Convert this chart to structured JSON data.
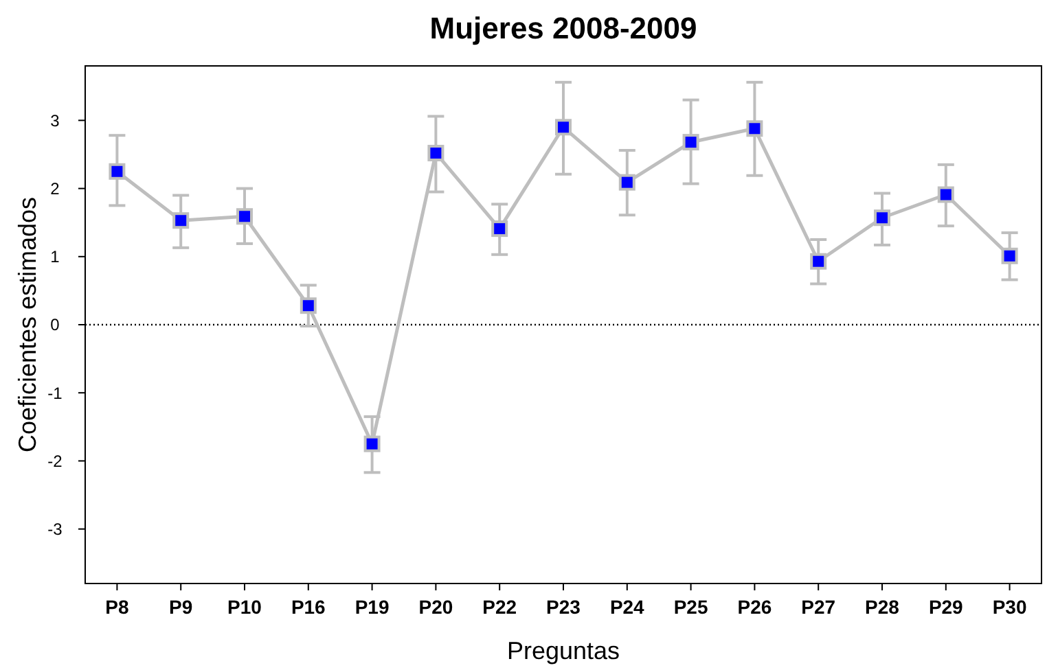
{
  "chart_data": {
    "type": "line",
    "title": "Mujeres 2008-2009",
    "xlabel": "Preguntas",
    "ylabel": "Coeficientes estimados",
    "categories": [
      "P8",
      "P9",
      "P10",
      "P16",
      "P19",
      "P20",
      "P22",
      "P23",
      "P24",
      "P25",
      "P26",
      "P27",
      "P28",
      "P29",
      "P30"
    ],
    "series": [
      {
        "color": "#0000ff",
        "values": [
          2.25,
          1.53,
          1.59,
          0.28,
          -1.75,
          2.52,
          1.41,
          2.9,
          2.09,
          2.68,
          2.88,
          0.93,
          1.57,
          1.91,
          1.01
        ],
        "errors": [
          [
            1.75,
            2.78
          ],
          [
            1.13,
            1.9
          ],
          [
            1.19,
            2.0
          ],
          [
            -0.02,
            0.58
          ],
          [
            -2.17,
            -1.35
          ],
          [
            1.95,
            3.06
          ],
          [
            1.03,
            1.77
          ],
          [
            2.21,
            3.56
          ],
          [
            1.61,
            2.56
          ],
          [
            2.07,
            3.3
          ],
          [
            2.19,
            3.56
          ],
          [
            0.6,
            1.25
          ],
          [
            1.17,
            1.93
          ],
          [
            1.45,
            2.35
          ],
          [
            0.66,
            1.35
          ]
        ]
      }
    ],
    "ylim": [
      -3.8,
      3.8
    ],
    "yticks": [
      -3,
      -2,
      -1,
      0,
      1,
      2,
      3
    ],
    "marker": "square",
    "line_style": "solid",
    "ref_lines": [
      {
        "axis": "y",
        "value": 0,
        "color": "#000000",
        "line_style": "dotted"
      }
    ]
  }
}
